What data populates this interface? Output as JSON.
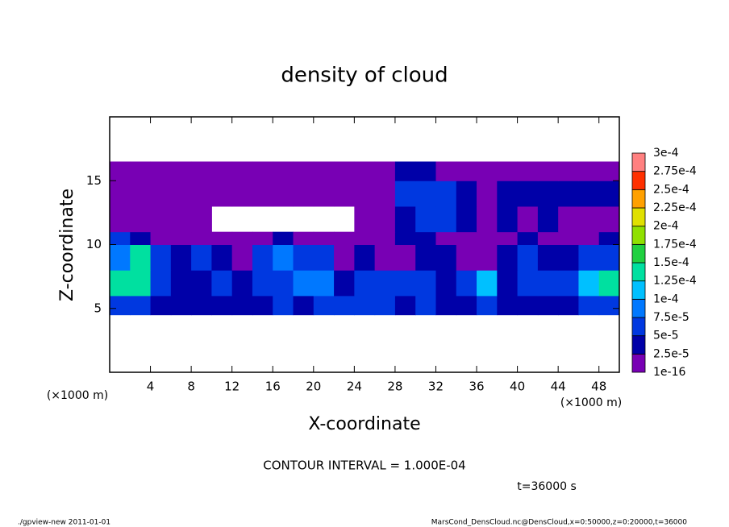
{
  "chart_data": {
    "type": "heatmap",
    "title": "density of cloud",
    "xlabel": "X-coordinate",
    "ylabel": "Z-coordinate",
    "axis_unit": "(×1000 m)",
    "xlim": [
      0,
      50
    ],
    "ylim": [
      0,
      20
    ],
    "xticks": [
      4,
      8,
      12,
      16,
      20,
      24,
      28,
      32,
      36,
      40,
      44,
      48
    ],
    "yticks": [
      5,
      10,
      15
    ],
    "x_edges": [
      0,
      2,
      4,
      6,
      8,
      10,
      12,
      14,
      16,
      18,
      20,
      22,
      24,
      26,
      28,
      30,
      32,
      34,
      36,
      38,
      40,
      42,
      44,
      46,
      48,
      50
    ],
    "y_edges": [
      4.5,
      6,
      8,
      10,
      11,
      13,
      15,
      16.5
    ],
    "values": [
      [
        5e-05,
        5e-05,
        2.5e-05,
        2.5e-05,
        2.5e-05,
        2.5e-05,
        2.5e-05,
        2.5e-05,
        5e-05,
        2.5e-05,
        5e-05,
        5e-05,
        5e-05,
        5e-05,
        2.5e-05,
        5e-05,
        2.5e-05,
        2.5e-05,
        5e-05,
        2.5e-05,
        2.5e-05,
        2.5e-05,
        2.5e-05,
        5e-05,
        5e-05
      ],
      [
        0.000125,
        0.000125,
        5e-05,
        2.5e-05,
        2.5e-05,
        5e-05,
        2.5e-05,
        5e-05,
        5e-05,
        7.5e-05,
        7.5e-05,
        2.5e-05,
        5e-05,
        5e-05,
        5e-05,
        5e-05,
        2.5e-05,
        5e-05,
        0.0001,
        2.5e-05,
        5e-05,
        5e-05,
        5e-05,
        0.0001,
        0.000125
      ],
      [
        7.5e-05,
        0.000125,
        5e-05,
        2.5e-05,
        5e-05,
        2.5e-05,
        1e-16,
        5e-05,
        7.5e-05,
        5e-05,
        5e-05,
        1e-16,
        2.5e-05,
        1e-16,
        1e-16,
        2.5e-05,
        2.5e-05,
        1e-16,
        1e-16,
        2.5e-05,
        5e-05,
        2.5e-05,
        2.5e-05,
        5e-05,
        5e-05
      ],
      [
        5e-05,
        2.5e-05,
        1e-16,
        1e-16,
        1e-16,
        1e-16,
        1e-16,
        1e-16,
        2.5e-05,
        1e-16,
        1e-16,
        1e-16,
        1e-16,
        1e-16,
        2.5e-05,
        2.5e-05,
        1e-16,
        1e-16,
        1e-16,
        1e-16,
        2.5e-05,
        1e-16,
        1e-16,
        1e-16,
        2.5e-05
      ],
      [
        1e-16,
        1e-16,
        1e-16,
        1e-16,
        1e-16,
        null,
        null,
        null,
        null,
        null,
        null,
        null,
        1e-16,
        1e-16,
        2.5e-05,
        5e-05,
        5e-05,
        2.5e-05,
        1e-16,
        2.5e-05,
        1e-16,
        2.5e-05,
        1e-16,
        1e-16,
        1e-16
      ],
      [
        1e-16,
        1e-16,
        1e-16,
        1e-16,
        1e-16,
        1e-16,
        1e-16,
        1e-16,
        1e-16,
        1e-16,
        1e-16,
        1e-16,
        1e-16,
        1e-16,
        5e-05,
        5e-05,
        5e-05,
        2.5e-05,
        1e-16,
        2.5e-05,
        2.5e-05,
        2.5e-05,
        2.5e-05,
        2.5e-05,
        2.5e-05
      ],
      [
        1e-16,
        1e-16,
        1e-16,
        1e-16,
        1e-16,
        1e-16,
        1e-16,
        1e-16,
        1e-16,
        1e-16,
        1e-16,
        1e-16,
        1e-16,
        1e-16,
        2.5e-05,
        2.5e-05,
        1e-16,
        1e-16,
        1e-16,
        1e-16,
        1e-16,
        1e-16,
        1e-16,
        1e-16,
        1e-16
      ]
    ],
    "levels": [
      {
        "value": 1e-16,
        "label": "1e-16"
      },
      {
        "value": 2.5e-05,
        "label": "2.5e-5"
      },
      {
        "value": 5e-05,
        "label": "5e-5"
      },
      {
        "value": 7.5e-05,
        "label": "7.5e-5"
      },
      {
        "value": 0.0001,
        "label": "1e-4"
      },
      {
        "value": 0.000125,
        "label": "1.25e-4"
      },
      {
        "value": 0.00015,
        "label": "1.5e-4"
      },
      {
        "value": 0.000175,
        "label": "1.75e-4"
      },
      {
        "value": 0.0002,
        "label": "2e-4"
      },
      {
        "value": 0.000225,
        "label": "2.25e-4"
      },
      {
        "value": 0.00025,
        "label": "2.5e-4"
      },
      {
        "value": 0.000275,
        "label": "2.75e-4"
      },
      {
        "value": 0.0003,
        "label": "3e-4"
      }
    ],
    "level_colors": [
      "#7800b4",
      "#0000a8",
      "#0038e0",
      "#0078ff",
      "#00c0ff",
      "#00e0a0",
      "#20d040",
      "#90e000",
      "#e0e000",
      "#ffa000",
      "#ff3000",
      "#ff8080"
    ],
    "annotation": "CONTOUR INTERVAL = 1.000E-04",
    "time_label": "t=36000 s"
  },
  "footer": {
    "left": "./gpview-new  2011-01-01",
    "right": "MarsCond_DensCloud.nc@DensCloud,x=0:50000,z=0:20000,t=36000"
  }
}
